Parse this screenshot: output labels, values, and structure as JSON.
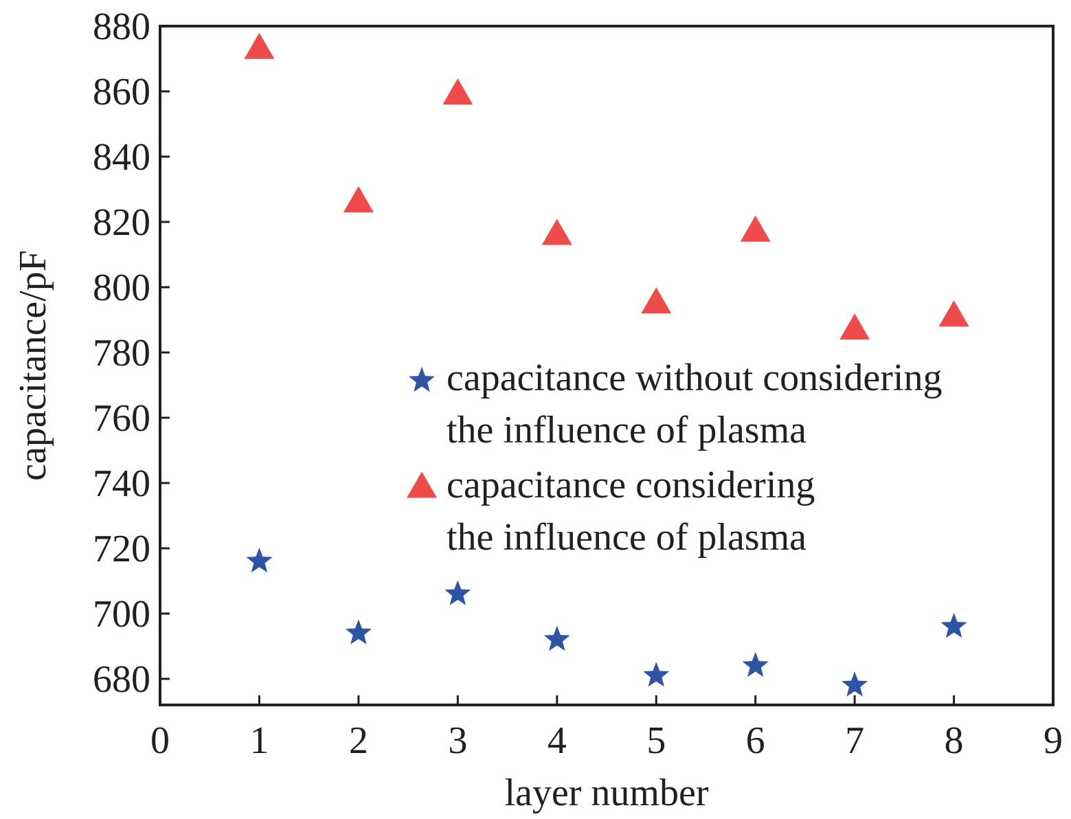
{
  "chart_data": {
    "type": "scatter",
    "title": "",
    "xlabel": "layer number",
    "ylabel": "capacitance/pF",
    "xlim": [
      0,
      9
    ],
    "ylim": [
      672,
      880
    ],
    "xticks": [
      0,
      1,
      2,
      3,
      4,
      5,
      6,
      7,
      8,
      9
    ],
    "yticks": [
      680,
      700,
      720,
      740,
      760,
      780,
      800,
      820,
      840,
      860,
      880
    ],
    "grid": false,
    "legend_position": "center-right",
    "x": [
      1,
      2,
      3,
      4,
      5,
      6,
      7,
      8
    ],
    "series": [
      {
        "name_lines": [
          "capacitance without considering",
          "the influence of plasma"
        ],
        "marker": "star",
        "color": "#2e54a4",
        "values": [
          716,
          694,
          706,
          692,
          681,
          684,
          678,
          696
        ]
      },
      {
        "name_lines": [
          "capacitance considering",
          "the influence of plasma"
        ],
        "marker": "triangle",
        "color": "#ef4b4b",
        "values": [
          873,
          826,
          859,
          816,
          795,
          817,
          787,
          791
        ]
      }
    ]
  }
}
